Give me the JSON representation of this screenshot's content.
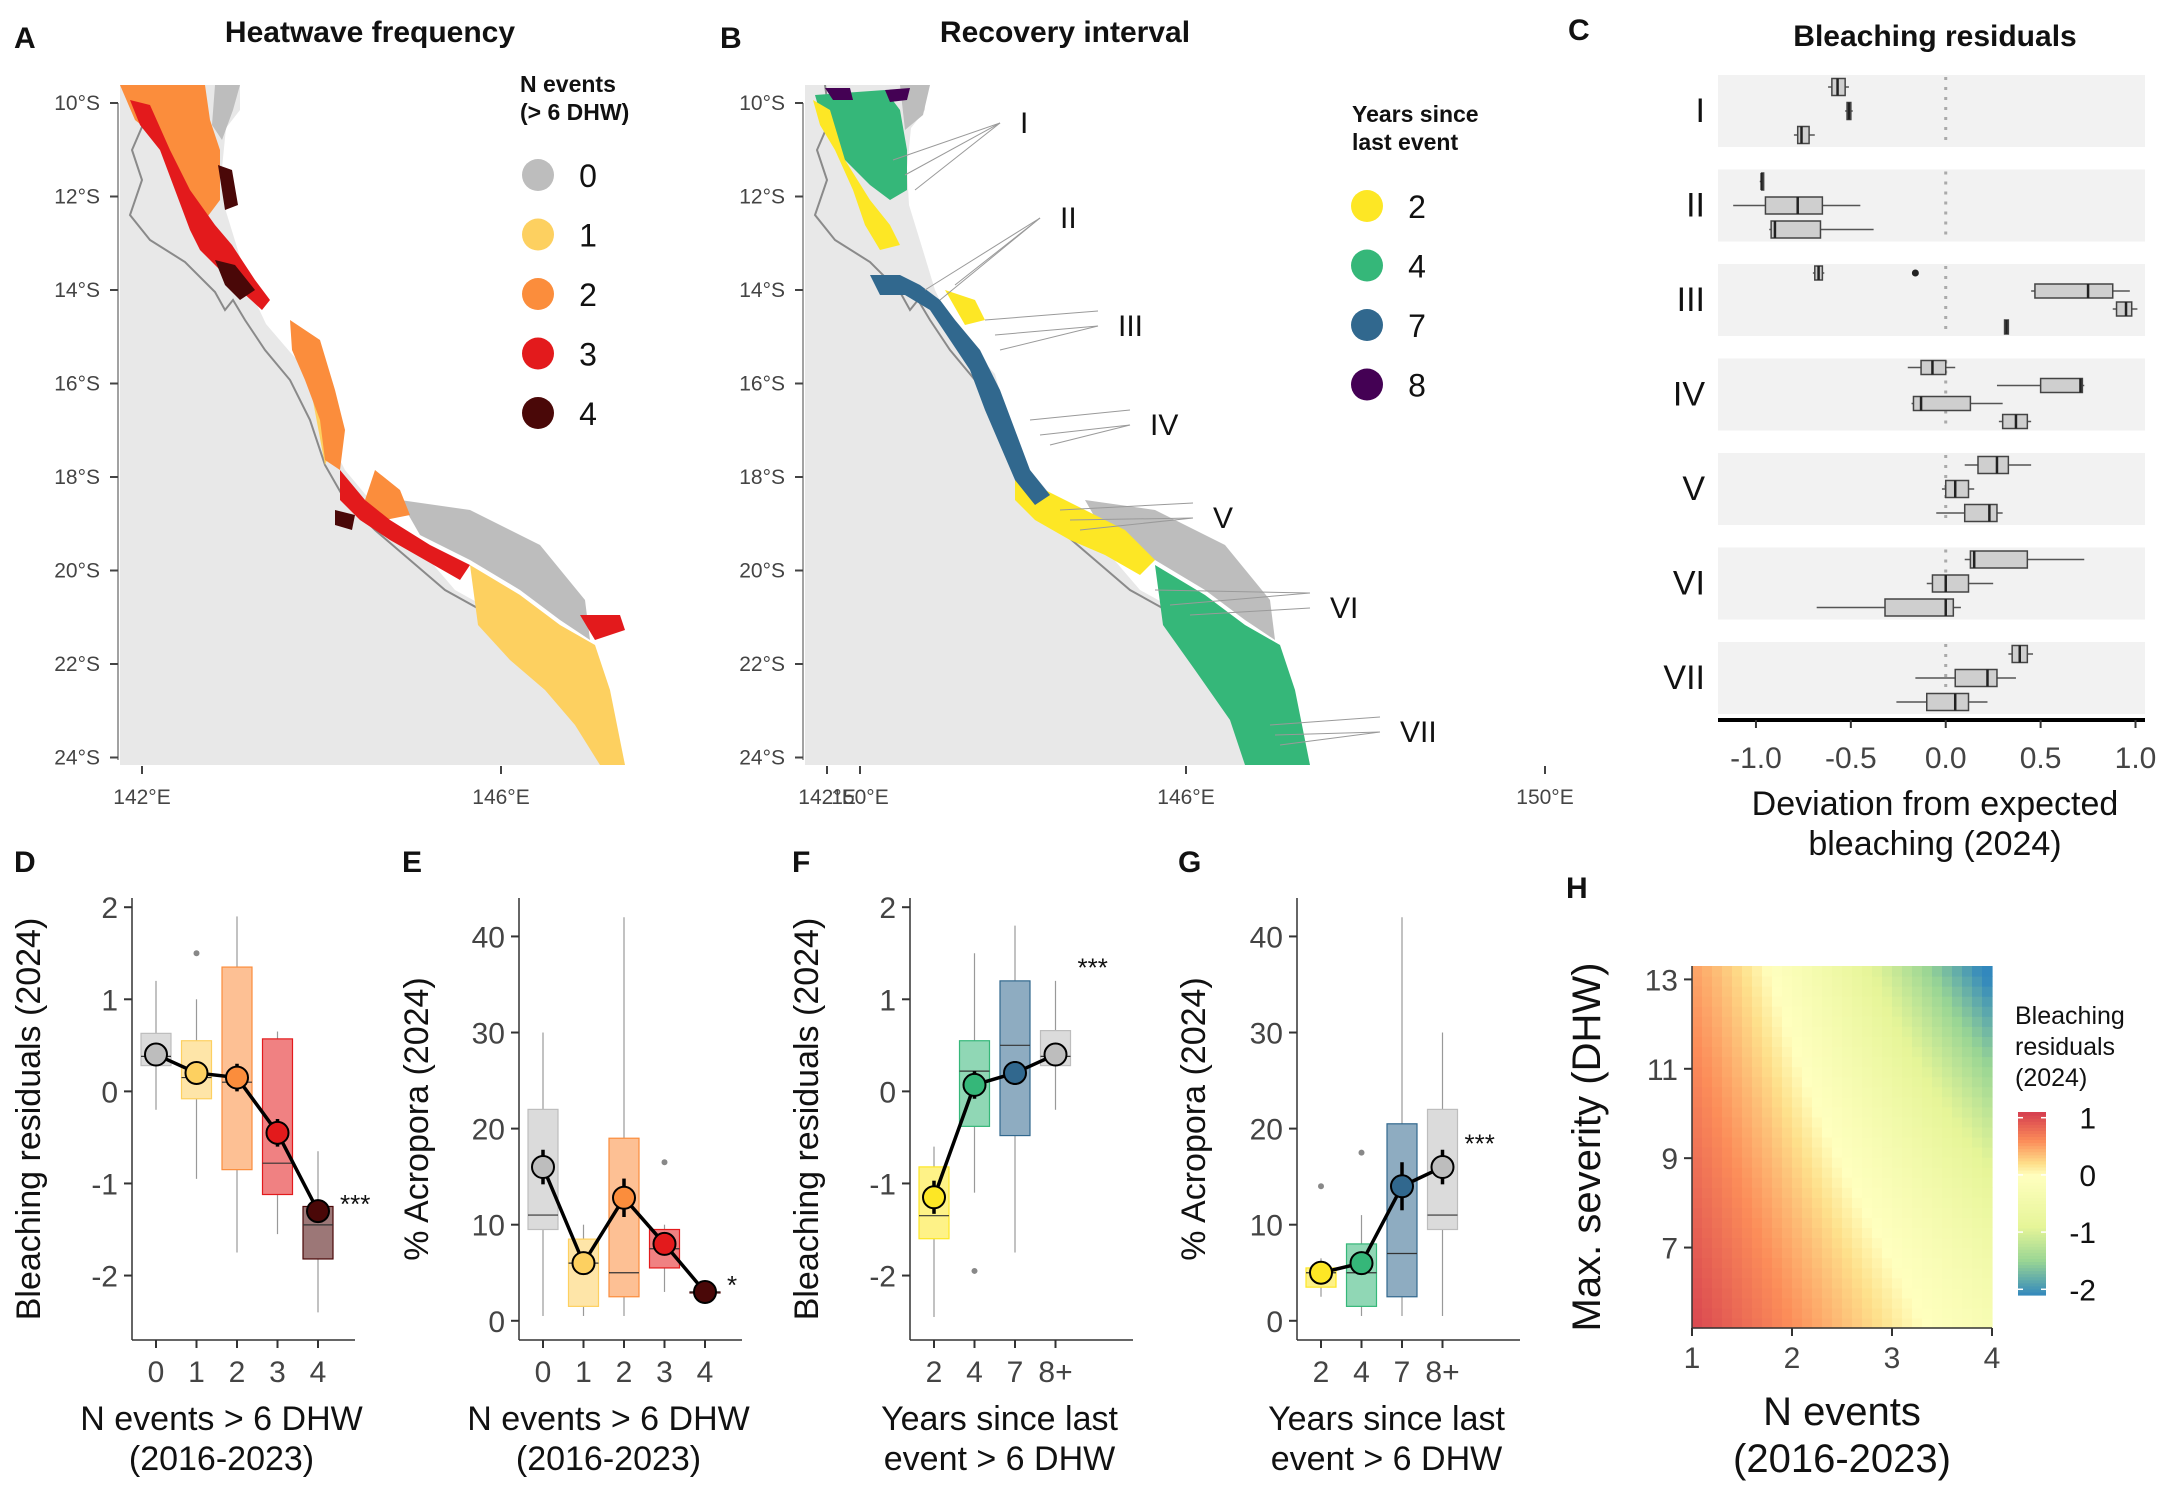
{
  "panels": {
    "A": {
      "letter": "A",
      "title": "Heatwave frequency"
    },
    "B": {
      "letter": "B",
      "title": "Recovery interval"
    },
    "C": {
      "letter": "C",
      "title": "Bleaching residuals"
    },
    "D": {
      "letter": "D"
    },
    "E": {
      "letter": "E"
    },
    "F": {
      "letter": "F"
    },
    "G": {
      "letter": "G"
    },
    "H": {
      "letter": "H"
    }
  },
  "map": {
    "lat_labels": [
      "10°S",
      "12°S",
      "14°S",
      "16°S",
      "18°S",
      "20°S",
      "22°S",
      "24°S"
    ],
    "lon_labels": [
      "142°E",
      "146°E",
      "150°E"
    ],
    "land_color": "#e8e8e8",
    "coast_color": "#8a8a8a",
    "legend_A": {
      "title_line1": "N events",
      "title_line2": "(> 6 DHW)",
      "items": [
        {
          "label": "0",
          "color": "#bdbdbd"
        },
        {
          "label": "1",
          "color": "#fdd060"
        },
        {
          "label": "2",
          "color": "#fb8d3c"
        },
        {
          "label": "3",
          "color": "#e31a1c"
        },
        {
          "label": "4",
          "color": "#4a0808"
        }
      ]
    },
    "legend_B": {
      "title_line1": "Years since",
      "title_line2": "last event",
      "items": [
        {
          "label": "2",
          "color": "#fde725"
        },
        {
          "label": "4",
          "color": "#35b779"
        },
        {
          "label": "7",
          "color": "#31688e"
        },
        {
          "label": "8",
          "color": "#440154"
        }
      ]
    },
    "regions": [
      "I",
      "II",
      "III",
      "IV",
      "V",
      "VI",
      "VII"
    ]
  },
  "chart_data": [
    {
      "panel": "C",
      "type": "boxplot",
      "title": "Bleaching residuals",
      "xlabel_line1": "Deviation from expected",
      "xlabel_line2": "bleaching (2024)",
      "xlim": [
        -1.2,
        1.05
      ],
      "x_ticks": [
        "-1.0",
        "-0.5",
        "0.0",
        "0.5",
        "1.0"
      ],
      "x_tick_values": [
        -1.0,
        -0.5,
        0.0,
        0.5,
        1.0
      ],
      "groups": [
        {
          "label": "I",
          "boxes": [
            {
              "min": -0.62,
              "q1": -0.6,
              "med": -0.57,
              "q3": -0.53,
              "max": -0.51
            },
            {
              "min": -0.53,
              "q1": -0.52,
              "med": -0.51,
              "q3": -0.5,
              "max": -0.49
            },
            {
              "min": -0.8,
              "q1": -0.78,
              "med": -0.76,
              "q3": -0.72,
              "max": -0.69
            }
          ]
        },
        {
          "label": "II",
          "boxes": [
            {
              "min": -0.98,
              "q1": -0.97,
              "med": -0.97,
              "q3": -0.96,
              "max": -0.96
            },
            {
              "min": -1.12,
              "q1": -0.95,
              "med": -0.78,
              "q3": -0.65,
              "max": -0.45
            },
            {
              "min": -0.93,
              "q1": -0.92,
              "med": -0.9,
              "q3": -0.66,
              "max": -0.38
            }
          ]
        },
        {
          "label": "III",
          "boxes": [
            {
              "min": -0.7,
              "q1": -0.69,
              "med": -0.67,
              "q3": -0.65,
              "max": -0.64,
              "outliers": [
                -0.16
              ]
            },
            {
              "min": 0.45,
              "q1": 0.47,
              "med": 0.75,
              "q3": 0.88,
              "max": 0.97
            },
            {
              "min": 0.88,
              "q1": 0.9,
              "med": 0.95,
              "q3": 0.98,
              "max": 1.01
            },
            {
              "min": 0.31,
              "q1": 0.31,
              "med": 0.32,
              "q3": 0.33,
              "max": 0.33
            }
          ]
        },
        {
          "label": "IV",
          "boxes": [
            {
              "min": -0.2,
              "q1": -0.13,
              "med": -0.07,
              "q3": 0.0,
              "max": 0.05
            },
            {
              "min": 0.27,
              "q1": 0.5,
              "med": 0.71,
              "q3": 0.72,
              "max": 0.73
            },
            {
              "min": -0.18,
              "q1": -0.17,
              "med": -0.13,
              "q3": 0.13,
              "max": 0.3
            },
            {
              "min": 0.28,
              "q1": 0.3,
              "med": 0.37,
              "q3": 0.43,
              "max": 0.45
            }
          ]
        },
        {
          "label": "V",
          "boxes": [
            {
              "min": 0.1,
              "q1": 0.17,
              "med": 0.27,
              "q3": 0.33,
              "max": 0.45
            },
            {
              "min": -0.02,
              "q1": 0.0,
              "med": 0.05,
              "q3": 0.12,
              "max": 0.15
            },
            {
              "min": -0.05,
              "q1": 0.1,
              "med": 0.23,
              "q3": 0.27,
              "max": 0.3
            }
          ]
        },
        {
          "label": "VI",
          "boxes": [
            {
              "min": 0.1,
              "q1": 0.13,
              "med": 0.15,
              "q3": 0.43,
              "max": 0.73
            },
            {
              "min": -0.1,
              "q1": -0.07,
              "med": 0.0,
              "q3": 0.12,
              "max": 0.25
            },
            {
              "min": -0.68,
              "q1": -0.32,
              "med": 0.0,
              "q3": 0.04,
              "max": 0.08
            }
          ]
        },
        {
          "label": "VII",
          "boxes": [
            {
              "min": 0.33,
              "q1": 0.35,
              "med": 0.39,
              "q3": 0.43,
              "max": 0.46
            },
            {
              "min": -0.16,
              "q1": 0.05,
              "med": 0.22,
              "q3": 0.27,
              "max": 0.37
            },
            {
              "min": -0.26,
              "q1": -0.1,
              "med": 0.05,
              "q3": 0.12,
              "max": 0.22
            }
          ]
        }
      ]
    },
    {
      "panel": "D",
      "type": "box+line",
      "ylabel": "Bleaching residuals (2024)",
      "xlabel_line1": "N events > 6 DHW",
      "xlabel_line2": "(2016-2023)",
      "ylim": [
        -2.7,
        2.1
      ],
      "y_ticks": [
        "2",
        "1",
        "0",
        "-1",
        "-2"
      ],
      "y_tick_values": [
        2,
        1,
        0,
        -1,
        -2
      ],
      "categories": [
        "0",
        "1",
        "2",
        "3",
        "4"
      ],
      "colors": [
        "#bdbdbd",
        "#fdd060",
        "#fb8d3c",
        "#e31a1c",
        "#4a0808"
      ],
      "boxes": [
        {
          "min": -0.2,
          "q1": 0.28,
          "med": 0.38,
          "q3": 0.63,
          "max": 1.2
        },
        {
          "min": -0.95,
          "q1": -0.08,
          "med": 0.15,
          "q3": 0.55,
          "max": 1.0,
          "outliers": [
            1.5
          ]
        },
        {
          "min": -1.75,
          "q1": -0.85,
          "med": 0.1,
          "q3": 1.35,
          "max": 1.9
        },
        {
          "min": -1.55,
          "q1": -1.12,
          "med": -0.78,
          "q3": 0.57,
          "max": 0.65
        },
        {
          "min": -2.4,
          "q1": -1.82,
          "med": -1.45,
          "q3": -1.25,
          "max": -0.65
        }
      ],
      "means": [
        0.4,
        0.2,
        0.15,
        -0.45,
        -1.3
      ],
      "errors": [
        0.07,
        0.08,
        0.15,
        0.15,
        0.12
      ],
      "significance": "***"
    },
    {
      "panel": "E",
      "type": "box+line",
      "ylabel": "% Acropora (2024)",
      "xlabel_line1": "N events > 6 DHW",
      "xlabel_line2": "(2016-2023)",
      "ylim": [
        -2,
        44
      ],
      "y_ticks": [
        "40",
        "30",
        "20",
        "10",
        "0"
      ],
      "y_tick_values": [
        40,
        30,
        20,
        10,
        0
      ],
      "categories": [
        "0",
        "1",
        "2",
        "3",
        "4"
      ],
      "colors": [
        "#bdbdbd",
        "#fdd060",
        "#fb8d3c",
        "#e31a1c",
        "#4a0808"
      ],
      "boxes": [
        {
          "min": 0.5,
          "q1": 9.5,
          "med": 11,
          "q3": 22,
          "max": 30
        },
        {
          "min": 0.5,
          "q1": 1.5,
          "med": 6,
          "q3": 8.5,
          "max": 10
        },
        {
          "min": 0.5,
          "q1": 2.5,
          "med": 5,
          "q3": 19,
          "max": 42
        },
        {
          "min": 3,
          "q1": 5.5,
          "med": 7.5,
          "q3": 9.5,
          "max": 10,
          "outliers": [
            16.5
          ]
        },
        {
          "min": 3,
          "q1": 3,
          "med": 3,
          "q3": 3,
          "max": 3
        }
      ],
      "means": [
        16,
        6,
        12.8,
        8,
        3
      ],
      "errors": [
        1.8,
        1.2,
        2.0,
        1.2,
        0.4
      ],
      "significance": "*"
    },
    {
      "panel": "F",
      "type": "box+line",
      "ylabel": "Bleaching residuals (2024)",
      "xlabel_line1": "Years since last",
      "xlabel_line2": "event > 6 DHW",
      "ylim": [
        -2.7,
        2.1
      ],
      "y_ticks": [
        "2",
        "1",
        "0",
        "-1",
        "-2"
      ],
      "y_tick_values": [
        2,
        1,
        0,
        -1,
        -2
      ],
      "categories": [
        "2",
        "4",
        "7",
        "8+"
      ],
      "colors": [
        "#fde725",
        "#35b779",
        "#31688e",
        "#bdbdbd"
      ],
      "boxes": [
        {
          "min": -2.45,
          "q1": -1.6,
          "med": -1.35,
          "q3": -0.82,
          "max": -0.6
        },
        {
          "min": -1.1,
          "q1": -0.38,
          "med": 0.22,
          "q3": 0.55,
          "max": 1.5,
          "outliers": [
            -1.95
          ]
        },
        {
          "min": -1.75,
          "q1": -0.48,
          "med": 0.5,
          "q3": 1.2,
          "max": 1.8
        },
        {
          "min": -0.2,
          "q1": 0.28,
          "med": 0.38,
          "q3": 0.66,
          "max": 1.2
        }
      ],
      "means": [
        -1.15,
        0.07,
        0.2,
        0.4
      ],
      "errors": [
        0.18,
        0.15,
        0.13,
        0.07
      ],
      "significance": "***"
    },
    {
      "panel": "G",
      "type": "box+line",
      "ylabel": "% Acropora (2024)",
      "xlabel_line1": "Years since last",
      "xlabel_line2": "event > 6 DHW",
      "ylim": [
        -2,
        44
      ],
      "y_ticks": [
        "40",
        "30",
        "20",
        "10",
        "0"
      ],
      "y_tick_values": [
        40,
        30,
        20,
        10,
        0
      ],
      "categories": [
        "2",
        "4",
        "7",
        "8+"
      ],
      "colors": [
        "#fde725",
        "#35b779",
        "#31688e",
        "#bdbdbd"
      ],
      "boxes": [
        {
          "min": 2.5,
          "q1": 3.5,
          "med": 5,
          "q3": 5.5,
          "max": 6.5,
          "outliers": [
            14
          ]
        },
        {
          "min": 0.5,
          "q1": 1.5,
          "med": 5,
          "q3": 8,
          "max": 11,
          "outliers": [
            17.5
          ]
        },
        {
          "min": 0.5,
          "q1": 2.5,
          "med": 7,
          "q3": 20.5,
          "max": 42
        },
        {
          "min": 0.5,
          "q1": 9.5,
          "med": 11,
          "q3": 22,
          "max": 30
        }
      ],
      "means": [
        5,
        6,
        14,
        16
      ],
      "errors": [
        0.8,
        1.0,
        2.5,
        1.8
      ],
      "significance": "***"
    },
    {
      "panel": "H",
      "type": "heatmap",
      "xlabel_line1": "N events",
      "xlabel_line2": "(2016-2023)",
      "ylabel": "Max. severity (DHW)",
      "xlim": [
        1,
        4
      ],
      "ylim": [
        5.2,
        13.3
      ],
      "x_ticks": [
        "1",
        "2",
        "3",
        "4"
      ],
      "x_tick_values": [
        1,
        2,
        3,
        4
      ],
      "y_ticks": [
        "13",
        "11",
        "9",
        "7"
      ],
      "y_tick_values": [
        13,
        11,
        9,
        7
      ],
      "legend_title_line1": "Bleaching",
      "legend_title_line2": "residuals",
      "legend_title_line3": "(2024)",
      "legend_ticks": [
        "1",
        "0",
        "-1",
        "-2"
      ],
      "legend_values": [
        1,
        0,
        -1,
        -2
      ],
      "legend_range": [
        -2.1,
        1.1
      ],
      "color_scale": [
        "#d53e4f",
        "#fc8d59",
        "#fee08b",
        "#ffffbf",
        "#e6f598",
        "#99d594",
        "#3288bd"
      ],
      "color_scale_stops": [
        1.1,
        0.6,
        0.2,
        0.0,
        -0.9,
        -1.5,
        -2.1
      ]
    }
  ]
}
